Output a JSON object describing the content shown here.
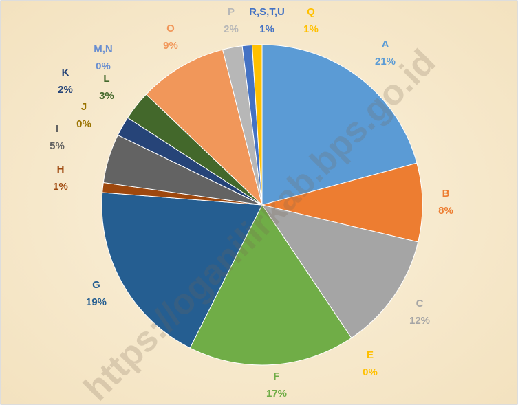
{
  "chart_data": {
    "type": "pie",
    "categories": [
      "A",
      "B",
      "C",
      "E",
      "F",
      "G",
      "H",
      "I",
      "J",
      "K",
      "L",
      "M,N",
      "O",
      "P",
      "R,S,T,U",
      "Q"
    ],
    "values": [
      21,
      8,
      12,
      0,
      17,
      19,
      1,
      5,
      0,
      2,
      3,
      0,
      9,
      2,
      1,
      1
    ],
    "value_labels": [
      "21%",
      "8%",
      "12%",
      "0%",
      "17%",
      "19%",
      "1%",
      "5%",
      "0%",
      "2%",
      "3%",
      "0%",
      "9%",
      "2%",
      "1%",
      "1%"
    ],
    "colors": [
      "#5b9bd5",
      "#ed7d31",
      "#a5a5a5",
      "#ffc000",
      "#70ad47",
      "#255e91",
      "#9e480e",
      "#636363",
      "#997300",
      "#264478",
      "#43682b",
      "#698ed0",
      "#f1975a",
      "#b7b7b7",
      "#4472c4",
      "#ffc000"
    ],
    "watermark": "https://oganilirkab.bps.go.id"
  }
}
